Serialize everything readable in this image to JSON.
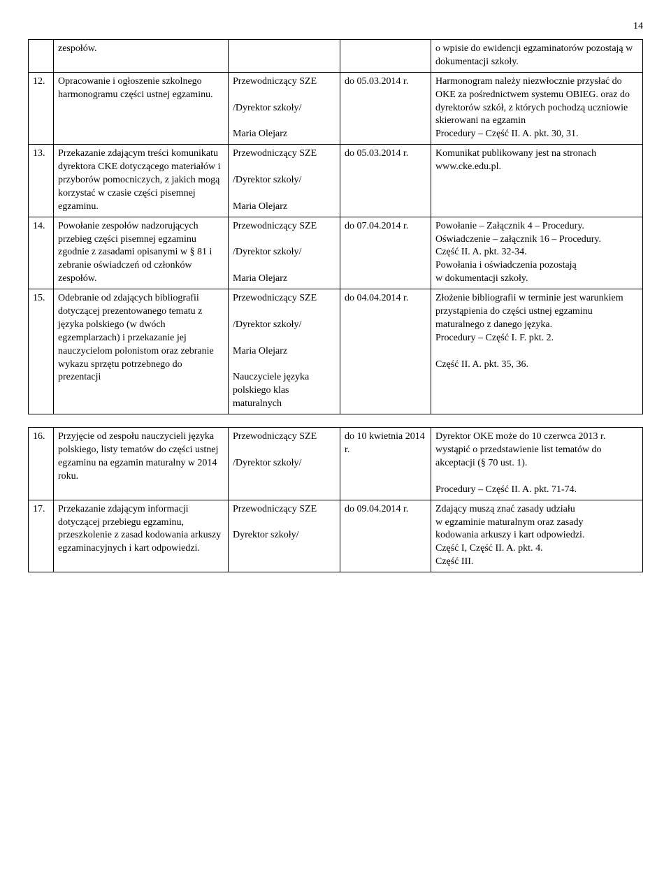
{
  "page_number": "14",
  "tables": [
    {
      "rows": [
        {
          "num": "",
          "desc": "zespołów.",
          "resp": "",
          "date": "",
          "note": "o wpisie do ewidencji egzaminatorów pozostają w dokumentacji szkoły."
        },
        {
          "num": "12.",
          "desc": "Opracowanie i ogłoszenie szkolnego harmonogramu części ustnej egzaminu.",
          "resp": "Przewodniczący SZE\n\n/Dyrektor szkoły/\n\nMaria Olejarz",
          "date": "do 05.03.2014 r.",
          "note": "Harmonogram należy niezwłocznie przysłać do OKE za pośrednictwem systemu OBIEG. oraz do dyrektorów szkół, z których pochodzą uczniowie skierowani na egzamin\nProcedury – Część II. A. pkt. 30, 31."
        },
        {
          "num": "13.",
          "desc": "Przekazanie zdającym treści komunikatu dyrektora CKE dotyczącego materiałów i przyborów pomocniczych, z jakich mogą korzystać w czasie części pisemnej egzaminu.",
          "resp": "Przewodniczący SZE\n\n/Dyrektor szkoły/\n\nMaria Olejarz",
          "date": "do 05.03.2014 r.",
          "note": "Komunikat publikowany jest na stronach\nwww.cke.edu.pl."
        },
        {
          "num": "14.",
          "desc": "Powołanie zespołów nadzorujących\nprzebieg części pisemnej egzaminu zgodnie z zasadami opisanymi w § 81 i zebranie oświadczeń od członków zespołów.",
          "resp": "Przewodniczący SZE\n\n/Dyrektor szkoły/\n\nMaria Olejarz",
          "date": "do 07.04.2014 r.",
          "note": "Powołanie – Załącznik 4 – Procedury.\nOświadczenie – załącznik 16 – Procedury.\nCzęść II. A. pkt. 32-34.\nPowołania i oświadczenia pozostają\nw dokumentacji szkoły."
        },
        {
          "num": "15.",
          "desc": "Odebranie od zdających bibliografii dotyczącej prezentowanego tematu z języka polskiego (w dwóch egzemplarzach) i przekazanie jej nauczycielom polonistom oraz zebranie wykazu sprzętu potrzebnego do prezentacji",
          "resp": "Przewodniczący SZE\n\n/Dyrektor szkoły/\n\nMaria Olejarz\n\nNauczyciele języka polskiego klas maturalnych",
          "date": "do 04.04.2014 r.",
          "note": "Złożenie bibliografii w terminie jest warunkiem\nprzystąpienia do części ustnej egzaminu\nmaturalnego z danego języka.\nProcedury – Część I. F. pkt. 2.\n\nCzęść II. A. pkt. 35, 36."
        }
      ]
    },
    {
      "rows": [
        {
          "num": "16.",
          "desc": "Przyjęcie od zespołu nauczycieli języka polskiego, listy tematów do części ustnej egzaminu na egzamin maturalny w 2014 roku.",
          "resp": "Przewodniczący SZE\n\n/Dyrektor szkoły/",
          "date": "do 10 kwietnia 2014 r.",
          "note": "Dyrektor OKE może do 10 czerwca 2013 r. wystąpić o przedstawienie list tematów do akceptacji (§ 70 ust. 1).\n\nProcedury – Część II. A. pkt. 71-74."
        },
        {
          "num": "17.",
          "desc": "Przekazanie zdającym informacji dotyczącej przebiegu egzaminu, przeszkolenie z zasad kodowania arkuszy egzaminacyjnych i kart odpowiedzi.",
          "resp": "Przewodniczący SZE\n\nDyrektor szkoły/",
          "date": "do 09.04.2014 r.",
          "note": "Zdający muszą znać zasady udziału\nw egzaminie maturalnym oraz zasady\nkodowania arkuszy i kart odpowiedzi.\nCzęść I, Część II. A. pkt. 4.\nCzęść III."
        }
      ]
    }
  ]
}
